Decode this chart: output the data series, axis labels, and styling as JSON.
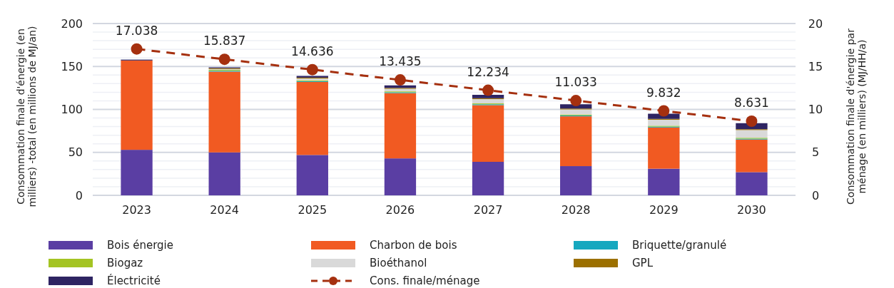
{
  "chart_data": {
    "type": "bar",
    "stacked": true,
    "categories": [
      "2023",
      "2024",
      "2025",
      "2026",
      "2027",
      "2028",
      "2029",
      "2030"
    ],
    "ylabel": "Consommation finale d'énergie (en milliers) -total (en millions de MJ/an)",
    "y2label": "Consommation finale d'énergie par ménage (en milliers) (MJ/HH/a)",
    "ylim": [
      0,
      200
    ],
    "yticks": [
      0,
      {
        "value": 10,
        "label": null
      },
      {
        "value": 20,
        "label": null
      },
      {
        "value": 30,
        "label": null
      },
      {
        "value": 40,
        "label": null
      },
      50,
      {
        "value": 60,
        "label": null
      },
      {
        "value": 70,
        "label": null
      },
      {
        "value": 80,
        "label": null
      },
      {
        "value": 90,
        "label": null
      },
      100,
      {
        "value": 110,
        "label": null
      },
      {
        "value": 120,
        "label": null
      },
      {
        "value": 130,
        "label": null
      },
      {
        "value": 140,
        "label": null
      },
      150,
      {
        "value": 160,
        "label": null
      },
      {
        "value": 170,
        "label": null
      },
      {
        "value": 180,
        "label": null
      },
      {
        "value": 190,
        "label": null
      },
      200
    ],
    "y2lim": [
      0,
      20
    ],
    "y2ticks": [
      0,
      5,
      10,
      15,
      20
    ],
    "grid": "y",
    "legend": "bottom",
    "series": [
      {
        "name": "Bois énergie",
        "color": "#5a3ea3",
        "values": [
          53,
          50,
          47,
          43,
          39,
          34,
          31,
          27
        ]
      },
      {
        "name": "Charbon de bois",
        "color": "#f15a22",
        "values": [
          104,
          94,
          85,
          76,
          66,
          58,
          48,
          38
        ]
      },
      {
        "name": "Briquette/granulé",
        "color": "#16a8bf",
        "values": [
          0,
          1,
          1,
          1,
          1,
          1,
          1,
          1
        ]
      },
      {
        "name": "Biogaz",
        "color": "#a4c423",
        "values": [
          0,
          1,
          1,
          1,
          1,
          1,
          1,
          1
        ]
      },
      {
        "name": "Bioéthanol",
        "color": "#d9d9d9",
        "values": [
          0,
          1,
          2,
          3,
          5,
          6,
          7,
          9
        ]
      },
      {
        "name": "GPL",
        "color": "#9c7000",
        "values": [
          0,
          1,
          1,
          1,
          1,
          1,
          1,
          1
        ]
      },
      {
        "name": "Électricité",
        "color": "#2e2462",
        "values": [
          1,
          1,
          2,
          3,
          4,
          5,
          6,
          7
        ]
      },
      {
        "name": "Cons. finale/ménage",
        "color": "#a5300f",
        "type": "line",
        "axis": "y2",
        "marker": "circle",
        "line_style": "dashed",
        "values": [
          17.038,
          15.837,
          14.636,
          13.435,
          12.234,
          11.033,
          9.832,
          8.631
        ],
        "value_labels": [
          "17.038",
          "15.837",
          "14.636",
          "13.435",
          "12.234",
          "11.033",
          "9.832",
          "8.631"
        ]
      }
    ]
  }
}
